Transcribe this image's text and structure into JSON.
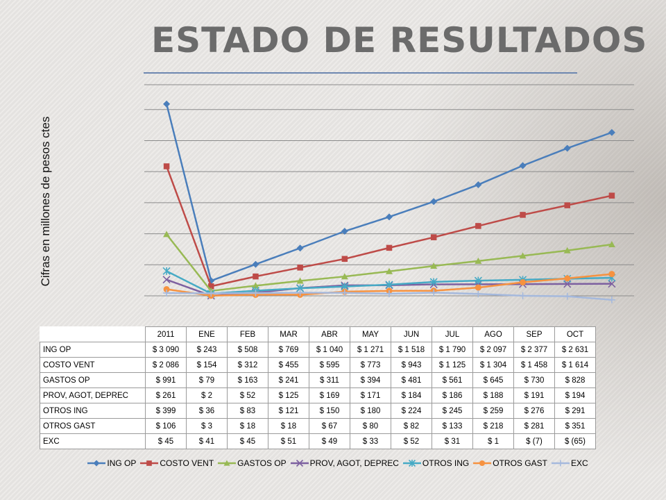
{
  "title": "ESTADO DE RESULTADOS",
  "chart_data": {
    "type": "line",
    "title": "ESTADO DE RESULTADOS",
    "ylabel": "Cifras en millones de pesos ctes",
    "xlabel": "",
    "categories": [
      "2011",
      "ENE",
      "FEB",
      "MAR",
      "ABR",
      "MAY",
      "JUN",
      "JUL",
      "AGO",
      "SEP",
      "OCT"
    ],
    "ylim": [
      -100,
      3500
    ],
    "grid": true,
    "legend": "bottom",
    "series": [
      {
        "name": "ING OP",
        "color": "#4a7ebb",
        "marker": "diamond",
        "values": [
          3090,
          243,
          508,
          769,
          1040,
          1271,
          1518,
          1790,
          2097,
          2377,
          2631
        ],
        "labels": [
          "$ 3 090",
          "$ 243",
          "$ 508",
          "$ 769",
          "$ 1 040",
          "$ 1 271",
          "$ 1 518",
          "$ 1 790",
          "$ 2 097",
          "$ 2 377",
          "$ 2 631"
        ]
      },
      {
        "name": "COSTO VENT",
        "color": "#be4b48",
        "marker": "square",
        "values": [
          2086,
          154,
          312,
          455,
          595,
          773,
          943,
          1125,
          1304,
          1458,
          1614
        ],
        "labels": [
          "$ 2 086",
          "$ 154",
          "$ 312",
          "$ 455",
          "$ 595",
          "$ 773",
          "$ 943",
          "$ 1 125",
          "$ 1 304",
          "$ 1 458",
          "$ 1 614"
        ]
      },
      {
        "name": "GASTOS OP",
        "color": "#98b954",
        "marker": "triangle",
        "values": [
          991,
          79,
          163,
          241,
          311,
          394,
          481,
          561,
          645,
          730,
          828
        ],
        "labels": [
          "$ 991",
          "$ 79",
          "$ 163",
          "$ 241",
          "$ 311",
          "$ 394",
          "$ 481",
          "$ 561",
          "$ 645",
          "$ 730",
          "$ 828"
        ]
      },
      {
        "name": "PROV, AGOT, DEPREC",
        "color": "#7d60a0",
        "marker": "x",
        "values": [
          261,
          2,
          52,
          125,
          169,
          171,
          184,
          186,
          188,
          191,
          194
        ],
        "labels": [
          "$ 261",
          "$ 2",
          "$ 52",
          "$ 125",
          "$ 169",
          "$ 171",
          "$ 184",
          "$ 186",
          "$ 188",
          "$ 191",
          "$ 194"
        ]
      },
      {
        "name": "OTROS ING",
        "color": "#46aac5",
        "marker": "star",
        "values": [
          399,
          36,
          83,
          121,
          150,
          180,
          224,
          245,
          259,
          276,
          291
        ],
        "labels": [
          "$ 399",
          "$ 36",
          "$ 83",
          "$ 121",
          "$ 150",
          "$ 180",
          "$ 224",
          "$ 245",
          "$ 259",
          "$ 276",
          "$ 291"
        ]
      },
      {
        "name": "OTROS GAST",
        "color": "#f69240",
        "marker": "circle",
        "values": [
          106,
          3,
          18,
          18,
          67,
          80,
          82,
          133,
          218,
          281,
          351
        ],
        "labels": [
          "$ 106",
          "$ 3",
          "$ 18",
          "$ 18",
          "$ 67",
          "$ 80",
          "$ 82",
          "$ 133",
          "$ 218",
          "$ 281",
          "$ 351"
        ]
      },
      {
        "name": "EXC",
        "color": "#a5b9dd",
        "marker": "plus",
        "values": [
          45,
          41,
          45,
          51,
          49,
          33,
          52,
          31,
          1,
          -7,
          -65
        ],
        "labels": [
          "$ 45",
          "$ 41",
          "$ 45",
          "$ 51",
          "$ 49",
          "$ 33",
          "$ 52",
          "$ 31",
          "$ 1",
          "$ (7)",
          "$ (65)"
        ]
      }
    ]
  }
}
